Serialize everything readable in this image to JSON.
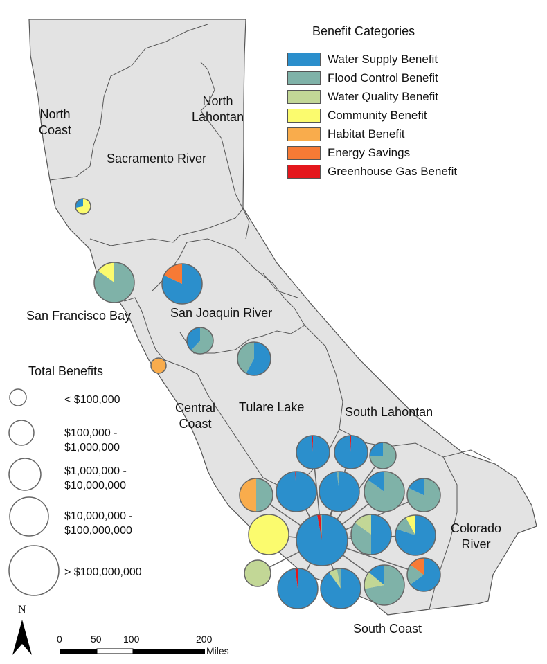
{
  "colors": {
    "water_supply": "#2b8fcc",
    "flood_control": "#7fb2a8",
    "water_quality": "#c2d796",
    "community": "#fbfb6e",
    "habitat": "#f9ac4c",
    "energy": "#f77a35",
    "ghg": "#e4171c",
    "land": "#e3e3e3",
    "boundary": "#555555"
  },
  "legend": {
    "title": "Benefit Categories",
    "items": [
      {
        "label": "Water Supply Benefit",
        "color": "#2b8fcc"
      },
      {
        "label": "Flood Control Benefit",
        "color": "#7fb2a8"
      },
      {
        "label": "Water Quality Benefit",
        "color": "#c2d796"
      },
      {
        "label": "Community Benefit",
        "color": "#fbfb6e"
      },
      {
        "label": "Habitat Benefit",
        "color": "#f9ac4c"
      },
      {
        "label": "Energy Savings",
        "color": "#f77a35"
      },
      {
        "label": "Greenhouse Gas Benefit",
        "color": "#e4171c"
      }
    ]
  },
  "size_legend": {
    "title": "Total Benefits",
    "classes": [
      {
        "line1": "< $100,000",
        "line2": ""
      },
      {
        "line1": "$100,000 -",
        "line2": "$1,000,000"
      },
      {
        "line1": "$1,000,000 -",
        "line2": "$10,000,000"
      },
      {
        "line1": "$10,000,000 -",
        "line2": "$100,000,000"
      },
      {
        "line1": "> $100,000,000",
        "line2": ""
      }
    ]
  },
  "regions": {
    "north_coast": [
      "North",
      "Coast"
    ],
    "north_lahontan": [
      "North",
      "Lahontan"
    ],
    "sacramento_river": "Sacramento River",
    "san_francisco_bay": "San Francisco Bay",
    "san_joaquin_river": "San Joaquin River",
    "central_coast": [
      "Central",
      "Coast"
    ],
    "tulare_lake": "Tulare Lake",
    "south_lahontan": "South Lahontan",
    "colorado_river": [
      "Colorado",
      "River"
    ],
    "south_coast": "South Coast"
  },
  "north_arrow": "N",
  "scale_bar": {
    "ticks": [
      "0",
      "50",
      "100",
      "200"
    ],
    "unit": "Miles"
  },
  "pie_charts": [
    {
      "region": "North Coast",
      "size_class": 1,
      "shares": {
        "community": 0.72,
        "water_supply": 0.28
      }
    },
    {
      "region": "San Francisco Bay",
      "size_class": 4,
      "shares": {
        "flood_control": 0.85,
        "community": 0.15
      }
    },
    {
      "region": "San Joaquin River",
      "size_class": 4,
      "shares": {
        "water_supply": 0.82,
        "energy": 0.18
      }
    },
    {
      "region": "San Joaquin River",
      "size_class": 2,
      "shares": {
        "flood_control": 0.62,
        "water_supply": 0.38
      }
    },
    {
      "region": "Tulare Lake",
      "size_class": 3,
      "shares": {
        "water_supply": 0.58,
        "flood_control": 0.42
      }
    },
    {
      "region": "Central Coast",
      "size_class": 1,
      "shares": {
        "habitat": 1.0
      }
    },
    {
      "region": "South Coast",
      "size_class": 3,
      "shares": {
        "water_supply": 0.99,
        "ghg": 0.01
      }
    },
    {
      "region": "South Coast",
      "size_class": 3,
      "shares": {
        "water_supply": 0.99,
        "ghg": 0.01
      }
    },
    {
      "region": "South Coast",
      "size_class": 2,
      "shares": {
        "flood_control": 0.75,
        "water_supply": 0.25
      }
    },
    {
      "region": "South Coast",
      "size_class": 3,
      "shares": {
        "flood_control": 0.5,
        "habitat": 0.5
      }
    },
    {
      "region": "South Coast",
      "size_class": 4,
      "shares": {
        "water_supply": 0.99,
        "ghg": 0.01
      }
    },
    {
      "region": "South Coast",
      "size_class": 4,
      "shares": {
        "water_supply": 0.98,
        "flood_control": 0.02
      }
    },
    {
      "region": "South Coast",
      "size_class": 4,
      "shares": {
        "flood_control": 0.85,
        "water_supply": 0.15
      }
    },
    {
      "region": "South Coast",
      "size_class": 3,
      "shares": {
        "flood_control": 0.82,
        "water_supply": 0.18
      }
    },
    {
      "region": "South Coast",
      "size_class": 4,
      "shares": {
        "community": 1.0
      }
    },
    {
      "region": "South Coast",
      "size_class": 5,
      "shares": {
        "water_supply": 0.97,
        "ghg": 0.02,
        "flood_control": 0.01
      }
    },
    {
      "region": "South Coast",
      "size_class": 4,
      "shares": {
        "water_supply": 0.5,
        "flood_control": 0.35,
        "water_quality": 0.15
      }
    },
    {
      "region": "Colorado River",
      "size_class": 4,
      "shares": {
        "water_supply": 0.8,
        "flood_control": 0.12,
        "community": 0.08
      }
    },
    {
      "region": "South Coast",
      "size_class": 2,
      "shares": {
        "water_quality": 1.0
      }
    },
    {
      "region": "South Coast",
      "size_class": 4,
      "shares": {
        "water_supply": 0.98,
        "ghg": 0.02
      }
    },
    {
      "region": "South Coast",
      "size_class": 4,
      "shares": {
        "water_supply": 0.9,
        "water_quality": 0.07,
        "flood_control": 0.03
      }
    },
    {
      "region": "South Coast",
      "size_class": 4,
      "shares": {
        "flood_control": 0.72,
        "water_quality": 0.14,
        "water_supply": 0.14
      }
    },
    {
      "region": "Colorado River",
      "size_class": 3,
      "shares": {
        "water_supply": 0.65,
        "flood_control": 0.2,
        "energy": 0.15
      }
    }
  ]
}
